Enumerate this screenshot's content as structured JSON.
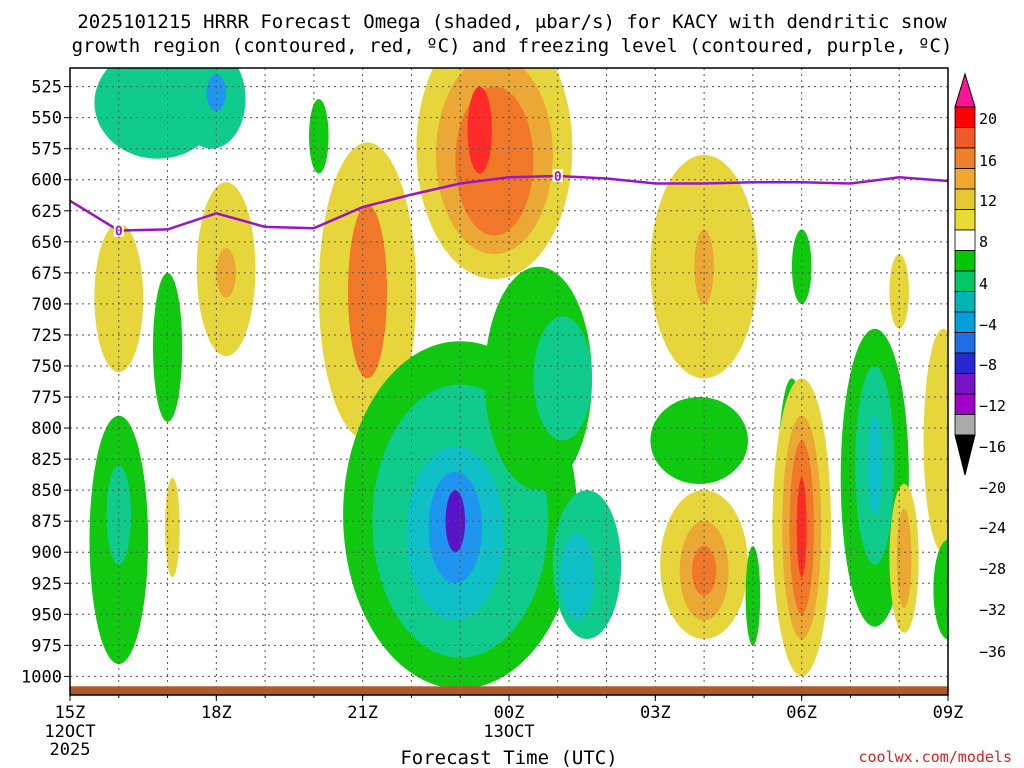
{
  "chart_data": {
    "type": "heatmap",
    "title_line1": "2025101215 HRRR Forecast Omega (shaded, μbar/s) for KACY with dendritic snow",
    "title_line2": "growth region (contoured, red, ºC) and freezing level (contoured, purple, ºC)",
    "xlabel": "Forecast Time (UTC)",
    "credit": "coolwx.com/models",
    "x_range_hours": [
      0,
      18
    ],
    "x_ticks": [
      {
        "hour": 0,
        "label": "15Z",
        "sub1": "12OCT",
        "sub2": "2025"
      },
      {
        "hour": 3,
        "label": "18Z",
        "sub1": "",
        "sub2": ""
      },
      {
        "hour": 6,
        "label": "21Z",
        "sub1": "",
        "sub2": ""
      },
      {
        "hour": 9,
        "label": "00Z",
        "sub1": "13OCT",
        "sub2": ""
      },
      {
        "hour": 12,
        "label": "03Z",
        "sub1": "",
        "sub2": ""
      },
      {
        "hour": 15,
        "label": "06Z",
        "sub1": "",
        "sub2": ""
      },
      {
        "hour": 18,
        "label": "09Z",
        "sub1": "",
        "sub2": ""
      }
    ],
    "y_range_mb": [
      510,
      1015
    ],
    "y_ticks_mb": [
      525,
      550,
      575,
      600,
      625,
      650,
      675,
      700,
      725,
      750,
      775,
      800,
      825,
      850,
      875,
      900,
      925,
      950,
      975,
      1000
    ],
    "colorbar": {
      "labels": [
        "20",
        "16",
        "12",
        "8",
        "4",
        "−4",
        "−8",
        "−12",
        "−16",
        "−20",
        "−24",
        "−28",
        "−32",
        "−36"
      ],
      "colors": [
        "#ff0000",
        "#f05a28",
        "#f0802a",
        "#f0a830",
        "#e6c832",
        "#e8dc32",
        "#ffffff",
        "#00c800",
        "#00c864",
        "#00b4b4",
        "#00a0dc",
        "#1e6ee6",
        "#2828d2",
        "#7814c8",
        "#a000c8",
        "#aaaaaa",
        "#000000"
      ],
      "top_color": "#ff1493"
    },
    "freezing_level": {
      "label": "0",
      "points": [
        [
          0,
          617
        ],
        [
          1,
          641
        ],
        [
          2,
          640
        ],
        [
          3,
          627
        ],
        [
          4,
          638
        ],
        [
          5,
          639
        ],
        [
          6,
          622
        ],
        [
          7,
          612
        ],
        [
          8,
          603
        ],
        [
          9,
          598
        ],
        [
          10,
          597
        ],
        [
          11,
          599
        ],
        [
          12,
          603
        ],
        [
          13,
          603
        ],
        [
          14,
          602
        ],
        [
          15,
          602
        ],
        [
          16,
          603
        ],
        [
          17,
          598
        ],
        [
          18,
          601
        ]
      ],
      "label_points": [
        [
          1,
          641
        ],
        [
          10,
          597
        ]
      ]
    },
    "omega_cells": [
      {
        "t": 1.8,
        "p": 538,
        "rx": 1.3,
        "ry": 45,
        "v": -10
      },
      {
        "t": 2.9,
        "p": 535,
        "rx": 0.7,
        "ry": 40,
        "v": -9
      },
      {
        "t": 3.0,
        "p": 530,
        "rx": 0.2,
        "ry": 15,
        "v": -17
      },
      {
        "t": 5.1,
        "p": 565,
        "rx": 0.2,
        "ry": 30,
        "v": -6
      },
      {
        "t": 1.0,
        "p": 695,
        "rx": 0.5,
        "ry": 60,
        "v": 5
      },
      {
        "t": 3.2,
        "p": 672,
        "rx": 0.6,
        "ry": 70,
        "v": 6
      },
      {
        "t": 3.2,
        "p": 675,
        "rx": 0.2,
        "ry": 20,
        "v": 10
      },
      {
        "t": 2.0,
        "p": 735,
        "rx": 0.3,
        "ry": 60,
        "v": -6
      },
      {
        "t": 6.1,
        "p": 690,
        "rx": 1.0,
        "ry": 120,
        "v": 6
      },
      {
        "t": 6.1,
        "p": 690,
        "rx": 0.4,
        "ry": 70,
        "v": 12
      },
      {
        "t": 6.1,
        "p": 680,
        "rx": 0.2,
        "ry": 40,
        "v": 14
      },
      {
        "t": 8.7,
        "p": 575,
        "rx": 1.6,
        "ry": 105,
        "v": 5
      },
      {
        "t": 8.7,
        "p": 580,
        "rx": 1.2,
        "ry": 80,
        "v": 9
      },
      {
        "t": 8.7,
        "p": 585,
        "rx": 0.8,
        "ry": 60,
        "v": 13
      },
      {
        "t": 8.4,
        "p": 560,
        "rx": 0.25,
        "ry": 35,
        "v": 18
      },
      {
        "t": 1.0,
        "p": 890,
        "rx": 0.6,
        "ry": 100,
        "v": -7
      },
      {
        "t": 1.0,
        "p": 870,
        "rx": 0.25,
        "ry": 40,
        "v": -11
      },
      {
        "t": 2.1,
        "p": 880,
        "rx": 0.15,
        "ry": 40,
        "v": 5
      },
      {
        "t": 8.0,
        "p": 870,
        "rx": 2.4,
        "ry": 140,
        "v": -7
      },
      {
        "t": 8.0,
        "p": 875,
        "rx": 1.8,
        "ry": 110,
        "v": -10
      },
      {
        "t": 7.9,
        "p": 885,
        "rx": 1.0,
        "ry": 70,
        "v": -14
      },
      {
        "t": 7.9,
        "p": 880,
        "rx": 0.55,
        "ry": 45,
        "v": -18
      },
      {
        "t": 7.9,
        "p": 875,
        "rx": 0.2,
        "ry": 25,
        "v": -24
      },
      {
        "t": 9.6,
        "p": 760,
        "rx": 1.1,
        "ry": 90,
        "v": -7
      },
      {
        "t": 10.1,
        "p": 760,
        "rx": 0.6,
        "ry": 50,
        "v": -10
      },
      {
        "t": 10.6,
        "p": 910,
        "rx": 0.7,
        "ry": 60,
        "v": -11
      },
      {
        "t": 10.4,
        "p": 920,
        "rx": 0.35,
        "ry": 35,
        "v": -14
      },
      {
        "t": 13.0,
        "p": 670,
        "rx": 1.1,
        "ry": 90,
        "v": 5
      },
      {
        "t": 13.0,
        "p": 670,
        "rx": 0.2,
        "ry": 30,
        "v": 9
      },
      {
        "t": 15.0,
        "p": 670,
        "rx": 0.2,
        "ry": 30,
        "v": -6
      },
      {
        "t": 12.9,
        "p": 810,
        "rx": 1.0,
        "ry": 35,
        "v": -6
      },
      {
        "t": 14.8,
        "p": 850,
        "rx": 0.3,
        "ry": 90,
        "v": -6
      },
      {
        "t": 13.0,
        "p": 910,
        "rx": 0.9,
        "ry": 60,
        "v": 5
      },
      {
        "t": 13.0,
        "p": 915,
        "rx": 0.5,
        "ry": 40,
        "v": 9
      },
      {
        "t": 13.0,
        "p": 915,
        "rx": 0.25,
        "ry": 20,
        "v": 12
      },
      {
        "t": 14.0,
        "p": 935,
        "rx": 0.15,
        "ry": 40,
        "v": -6
      },
      {
        "t": 15.0,
        "p": 880,
        "rx": 0.6,
        "ry": 120,
        "v": 5
      },
      {
        "t": 15.0,
        "p": 880,
        "rx": 0.4,
        "ry": 90,
        "v": 9
      },
      {
        "t": 15.0,
        "p": 880,
        "rx": 0.25,
        "ry": 70,
        "v": 13
      },
      {
        "t": 15.0,
        "p": 880,
        "rx": 0.1,
        "ry": 40,
        "v": 18
      },
      {
        "t": 16.5,
        "p": 840,
        "rx": 0.7,
        "ry": 120,
        "v": -7
      },
      {
        "t": 16.5,
        "p": 830,
        "rx": 0.4,
        "ry": 80,
        "v": -10
      },
      {
        "t": 16.5,
        "p": 830,
        "rx": 0.15,
        "ry": 40,
        "v": -14
      },
      {
        "t": 17.1,
        "p": 905,
        "rx": 0.3,
        "ry": 60,
        "v": 5
      },
      {
        "t": 17.1,
        "p": 905,
        "rx": 0.15,
        "ry": 40,
        "v": 9
      },
      {
        "t": 17.0,
        "p": 690,
        "rx": 0.2,
        "ry": 30,
        "v": 5
      },
      {
        "t": 17.9,
        "p": 810,
        "rx": 0.4,
        "ry": 90,
        "v": 5
      },
      {
        "t": 18.0,
        "p": 930,
        "rx": 0.3,
        "ry": 40,
        "v": -6
      }
    ],
    "terrain": {
      "color": "#b05a2a",
      "top_mb": 1008
    }
  }
}
